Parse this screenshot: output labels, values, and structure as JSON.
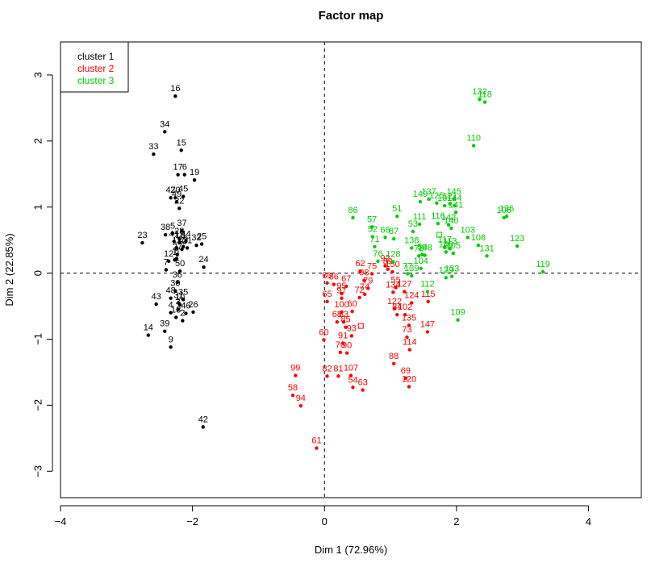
{
  "chart_data": {
    "type": "scatter",
    "title": "Factor map",
    "xlabel": "Dim 1 (72.96%)",
    "ylabel": "Dim 2 (22.85%)",
    "xlim": [
      -4,
      4.8
    ],
    "ylim": [
      -3.4,
      3.5
    ],
    "xticks": [
      -4,
      -2,
      0,
      2,
      4
    ],
    "yticks": [
      -3,
      -2,
      -1,
      0,
      1,
      2,
      3
    ],
    "xtick_labels": [
      "−4",
      "−2",
      "0",
      "2",
      "4"
    ],
    "ytick_labels": [
      "−3",
      "−2",
      "−1",
      "0",
      "1",
      "2",
      "3"
    ],
    "reference_lines": {
      "x": 0,
      "y": 0,
      "style": "dashed"
    },
    "legend": {
      "position": "top-left"
    },
    "series": [
      {
        "name": "cluster 1",
        "color": "#000000",
        "points": [
          {
            "label": "16",
            "x": -2.26,
            "y": 2.68
          },
          {
            "label": "34",
            "x": -2.42,
            "y": 2.14
          },
          {
            "label": "15",
            "x": -2.17,
            "y": 1.86
          },
          {
            "label": "33",
            "x": -2.59,
            "y": 1.8
          },
          {
            "label": "19",
            "x": -1.97,
            "y": 1.41
          },
          {
            "label": "17",
            "x": -2.22,
            "y": 1.49
          },
          {
            "label": "6",
            "x": -2.12,
            "y": 1.49
          },
          {
            "label": "47",
            "x": -2.33,
            "y": 1.14
          },
          {
            "label": "20",
            "x": -2.26,
            "y": 1.14
          },
          {
            "label": "45",
            "x": -2.14,
            "y": 1.16
          },
          {
            "label": "49",
            "x": -2.24,
            "y": 1.08
          },
          {
            "label": "22",
            "x": -2.2,
            "y": 0.98
          },
          {
            "label": "37",
            "x": -2.16,
            "y": 0.64
          },
          {
            "label": "38",
            "x": -2.41,
            "y": 0.58
          },
          {
            "label": "5",
            "x": -2.3,
            "y": 0.6
          },
          {
            "label": "23",
            "x": -2.76,
            "y": 0.46
          },
          {
            "label": "41",
            "x": -2.28,
            "y": 0.48
          },
          {
            "label": "28",
            "x": -2.2,
            "y": 0.52
          },
          {
            "label": "18",
            "x": -2.19,
            "y": 0.46
          },
          {
            "label": "44",
            "x": -2.1,
            "y": 0.48
          },
          {
            "label": "32",
            "x": -1.94,
            "y": 0.42
          },
          {
            "label": "29",
            "x": -2.14,
            "y": 0.4
          },
          {
            "label": "25",
            "x": -1.86,
            "y": 0.44
          },
          {
            "label": "11",
            "x": -2.24,
            "y": 0.38
          },
          {
            "label": "40",
            "x": -2.16,
            "y": 0.36
          },
          {
            "label": "21",
            "x": -2.08,
            "y": 0.38
          },
          {
            "label": "27",
            "x": -2.23,
            "y": 0.28
          },
          {
            "label": "12",
            "x": -2.36,
            "y": 0.18
          },
          {
            "label": "8",
            "x": -2.24,
            "y": 0.22
          },
          {
            "label": "1",
            "x": -2.27,
            "y": 0.2
          },
          {
            "label": "24",
            "x": -1.83,
            "y": 0.09
          },
          {
            "label": "7",
            "x": -2.4,
            "y": 0.05
          },
          {
            "label": "50",
            "x": -2.19,
            "y": 0.03
          },
          {
            "label": "36",
            "x": -2.23,
            "y": -0.14
          },
          {
            "label": "30",
            "x": -2.26,
            "y": -0.27
          },
          {
            "label": "48",
            "x": -2.33,
            "y": -0.38
          },
          {
            "label": "43",
            "x": -2.55,
            "y": -0.47
          },
          {
            "label": "31",
            "x": -2.21,
            "y": -0.45
          },
          {
            "label": "35",
            "x": -2.14,
            "y": -0.4
          },
          {
            "label": "10",
            "x": -2.19,
            "y": -0.48
          },
          {
            "label": "26",
            "x": -1.99,
            "y": -0.59
          },
          {
            "label": "4",
            "x": -2.33,
            "y": -0.6
          },
          {
            "label": "3",
            "x": -2.22,
            "y": -0.55
          },
          {
            "label": "46",
            "x": -2.1,
            "y": -0.61
          },
          {
            "label": "13",
            "x": -2.25,
            "y": -0.67
          },
          {
            "label": "39",
            "x": -2.42,
            "y": -0.88
          },
          {
            "label": "14",
            "x": -2.67,
            "y": -0.94
          },
          {
            "label": "2",
            "x": -2.15,
            "y": -0.72
          },
          {
            "label": "9",
            "x": -2.33,
            "y": -1.12
          },
          {
            "label": "42",
            "x": -1.84,
            "y": -2.33
          }
        ]
      },
      {
        "name": "cluster 2",
        "color": "#ff0000",
        "points": [
          {
            "label": "92",
            "x": 0.92,
            "y": 0.11
          },
          {
            "label": "62",
            "x": 0.54,
            "y": 0.03
          },
          {
            "label": "75",
            "x": 0.72,
            "y": -0.01
          },
          {
            "label": "89",
            "x": 0.96,
            "y": 0.06
          },
          {
            "label": "150",
            "x": 1.03,
            "y": 0.02
          },
          {
            "label": "80",
            "x": 0.04,
            "y": -0.15
          },
          {
            "label": "86",
            "x": 0.14,
            "y": -0.17
          },
          {
            "label": "67",
            "x": 0.33,
            "y": -0.2
          },
          {
            "label": "98",
            "x": 0.6,
            "y": -0.11
          },
          {
            "label": "79",
            "x": 0.66,
            "y": -0.23
          },
          {
            "label": "95",
            "x": 0.26,
            "y": -0.31
          },
          {
            "label": "97",
            "x": 0.26,
            "y": -0.38
          },
          {
            "label": "72",
            "x": 0.53,
            "y": -0.37
          },
          {
            "label": "74",
            "x": 0.61,
            "y": -0.32
          },
          {
            "label": "65",
            "x": 0.04,
            "y": -0.43
          },
          {
            "label": "55",
            "x": 1.08,
            "y": -0.22
          },
          {
            "label": "134",
            "x": 1.04,
            "y": -0.29
          },
          {
            "label": "127",
            "x": 1.21,
            "y": -0.28
          },
          {
            "label": "124",
            "x": 1.32,
            "y": -0.45
          },
          {
            "label": "115",
            "x": 1.57,
            "y": -0.43
          },
          {
            "label": "122",
            "x": 1.06,
            "y": -0.54
          },
          {
            "label": "100",
            "x": 0.26,
            "y": -0.59
          },
          {
            "label": "60",
            "x": 0.42,
            "y": -0.58
          },
          {
            "label": "84",
            "x": 1.1,
            "y": -0.63
          },
          {
            "label": "102",
            "x": 1.22,
            "y": -0.63
          },
          {
            "label": "68",
            "x": 0.19,
            "y": -0.74
          },
          {
            "label": "83",
            "x": 0.29,
            "y": -0.74
          },
          {
            "label": "85",
            "x": 0.32,
            "y": -0.82
          },
          {
            "label": "135",
            "x": 1.28,
            "y": -0.79
          },
          {
            "label": "147",
            "x": 1.56,
            "y": -0.89
          },
          {
            "label": "73",
            "x": 1.25,
            "y": -0.97
          },
          {
            "label": "93",
            "x": 0.41,
            "y": -0.95
          },
          {
            "label": "60b",
            "x": -0.01,
            "y": -1.01
          },
          {
            "label": "91",
            "x": 0.28,
            "y": -1.06
          },
          {
            "label": "114",
            "x": 1.29,
            "y": -1.16
          },
          {
            "label": "70",
            "x": 0.24,
            "y": -1.2
          },
          {
            "label": "88",
            "x": 1.05,
            "y": -1.37
          },
          {
            "label": "90",
            "x": 0.34,
            "y": -1.21
          },
          {
            "label": "99",
            "x": -0.44,
            "y": -1.55
          },
          {
            "label": "81",
            "x": 0.21,
            "y": -1.56
          },
          {
            "label": "82",
            "x": 0.04,
            "y": -1.56
          },
          {
            "label": "107",
            "x": 0.4,
            "y": -1.55
          },
          {
            "label": "69",
            "x": 1.23,
            "y": -1.59
          },
          {
            "label": "54",
            "x": 0.43,
            "y": -1.73
          },
          {
            "label": "63",
            "x": 0.58,
            "y": -1.77
          },
          {
            "label": "120",
            "x": 1.28,
            "y": -1.72
          },
          {
            "label": "58",
            "x": -0.48,
            "y": -1.85
          },
          {
            "label": "94",
            "x": -0.36,
            "y": -2.01
          },
          {
            "label": "61",
            "x": -0.12,
            "y": -2.65
          }
        ]
      },
      {
        "name": "cluster 3",
        "color": "#00cc00",
        "points": [
          {
            "label": "132",
            "x": 2.35,
            "y": 2.63
          },
          {
            "label": "118",
            "x": 2.43,
            "y": 2.59
          },
          {
            "label": "110",
            "x": 2.26,
            "y": 1.93
          },
          {
            "label": "149",
            "x": 1.45,
            "y": 1.08
          },
          {
            "label": "137",
            "x": 1.58,
            "y": 1.12
          },
          {
            "label": "125",
            "x": 1.7,
            "y": 1.06
          },
          {
            "label": "145",
            "x": 1.96,
            "y": 1.12
          },
          {
            "label": "121",
            "x": 1.9,
            "y": 1.05
          },
          {
            "label": "144",
            "x": 1.97,
            "y": 1.02
          },
          {
            "label": "101",
            "x": 1.82,
            "y": 1.02
          },
          {
            "label": "141",
            "x": 1.99,
            "y": 0.92
          },
          {
            "label": "136",
            "x": 2.76,
            "y": 0.86
          },
          {
            "label": "106",
            "x": 2.72,
            "y": 0.84
          },
          {
            "label": "51",
            "x": 1.1,
            "y": 0.86
          },
          {
            "label": "86",
            "x": 0.43,
            "y": 0.84
          },
          {
            "label": "57",
            "x": 0.72,
            "y": 0.7
          },
          {
            "label": "111",
            "x": 1.44,
            "y": 0.74
          },
          {
            "label": "116",
            "x": 1.72,
            "y": 0.75
          },
          {
            "label": "142",
            "x": 1.88,
            "y": 0.73
          },
          {
            "label": "140",
            "x": 1.92,
            "y": 0.68
          },
          {
            "label": "53",
            "x": 1.34,
            "y": 0.63
          },
          {
            "label": "52",
            "x": 0.73,
            "y": 0.55
          },
          {
            "label": "66",
            "x": 0.92,
            "y": 0.54
          },
          {
            "label": "87",
            "x": 1.05,
            "y": 0.52
          },
          {
            "label": "103",
            "x": 2.17,
            "y": 0.54
          },
          {
            "label": "71",
            "x": 0.76,
            "y": 0.4
          },
          {
            "label": "113",
            "x": 1.9,
            "y": 0.37
          },
          {
            "label": "108",
            "x": 2.33,
            "y": 0.42
          },
          {
            "label": "123",
            "x": 2.92,
            "y": 0.41
          },
          {
            "label": "138",
            "x": 1.32,
            "y": 0.38
          },
          {
            "label": "146",
            "x": 1.84,
            "y": 0.32
          },
          {
            "label": "117",
            "x": 1.82,
            "y": 0.39
          },
          {
            "label": "59",
            "x": 1.48,
            "y": 0.28
          },
          {
            "label": "78",
            "x": 1.43,
            "y": 0.26
          },
          {
            "label": "148",
            "x": 1.52,
            "y": 0.27
          },
          {
            "label": "105",
            "x": 1.95,
            "y": 0.3
          },
          {
            "label": "131",
            "x": 2.46,
            "y": 0.26
          },
          {
            "label": "76",
            "x": 0.81,
            "y": 0.18
          },
          {
            "label": "128",
            "x": 1.04,
            "y": 0.17
          },
          {
            "label": "104",
            "x": 1.46,
            "y": 0.07
          },
          {
            "label": "77",
            "x": 1.26,
            "y": -0.01
          },
          {
            "label": "139",
            "x": 1.32,
            "y": -0.04
          },
          {
            "label": "129",
            "x": 1.84,
            "y": -0.07
          },
          {
            "label": "133",
            "x": 1.93,
            "y": -0.05
          },
          {
            "label": "112",
            "x": 1.56,
            "y": -0.28
          },
          {
            "label": "119",
            "x": 3.31,
            "y": 0.02
          },
          {
            "label": "109",
            "x": 2.02,
            "y": -0.71
          }
        ]
      }
    ],
    "centroids": [
      {
        "series": "cluster 2",
        "x": 0.55,
        "y": -0.8
      },
      {
        "series": "cluster 3",
        "x": 1.74,
        "y": 0.58
      }
    ]
  }
}
